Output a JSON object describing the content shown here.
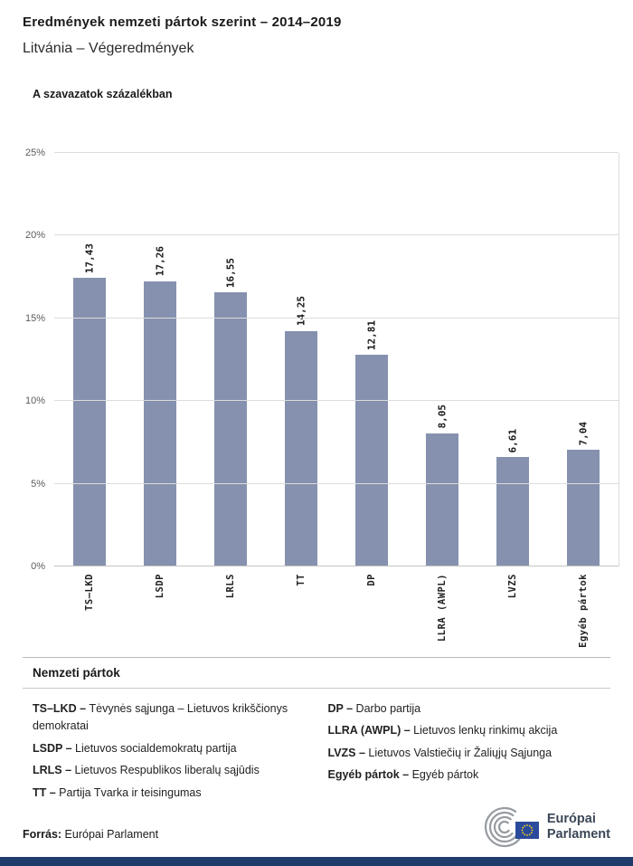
{
  "header": {
    "title": "Eredmények nemzeti pártok szerint – 2014–2019",
    "subtitle": "Litvánia – Végeredmények"
  },
  "chart": {
    "label": "A szavazatok százalékban"
  },
  "chart_data": {
    "type": "bar",
    "title": "A szavazatok százalékban",
    "categories": [
      "TS–LKD",
      "LSDP",
      "LRLS",
      "TT",
      "DP",
      "LLRA (AWPL)",
      "LVZS",
      "Egyéb pártok"
    ],
    "values": [
      17.43,
      17.26,
      16.55,
      14.25,
      12.81,
      8.05,
      6.61,
      7.04
    ],
    "value_labels": [
      "17,43",
      "17,26",
      "16,55",
      "14,25",
      "12,81",
      "8,05",
      "6,61",
      "7,04"
    ],
    "xlabel": "",
    "ylabel": "A szavazatok százalékban",
    "ylim": [
      0,
      25
    ],
    "yticks": [
      "0%",
      "5%",
      "10%",
      "15%",
      "20%",
      "25%"
    ],
    "grid": true,
    "legend_position": "none",
    "bar_color": "#8591AE"
  },
  "legend": {
    "heading": "Nemzeti pártok",
    "columns": [
      [
        {
          "abbr": "TS–LKD –",
          "name": "Tėvynės sąjunga – Lietuvos krikščionys demokratai"
        },
        {
          "abbr": "LSDP –",
          "name": "Lietuvos socialdemokratų partija"
        },
        {
          "abbr": "LRLS –",
          "name": "Lietuvos Respublikos liberalų sąjūdis"
        },
        {
          "abbr": "TT –",
          "name": "Partija Tvarka ir teisingumas"
        }
      ],
      [
        {
          "abbr": "DP –",
          "name": "Darbo partija"
        },
        {
          "abbr": "LLRA (AWPL) –",
          "name": "Lietuvos lenkų rinkimų akcija"
        },
        {
          "abbr": "LVZS –",
          "name": "Lietuvos Valstiečių ir Žaliųjų Sąjunga"
        },
        {
          "abbr": "Egyéb pártok –",
          "name": "Egyéb pártok"
        }
      ]
    ]
  },
  "footer": {
    "source_label": "Forrás:",
    "source_text": " Európai Parlament",
    "logo_line1": "Európai",
    "logo_line2": "Parlament"
  },
  "colors": {
    "bar": "#8591AE",
    "bottom_bar": "#1F3B6C",
    "grid": "#DCDCDC",
    "flag_blue": "#2A4B9B",
    "star_yellow": "#FFD617"
  }
}
